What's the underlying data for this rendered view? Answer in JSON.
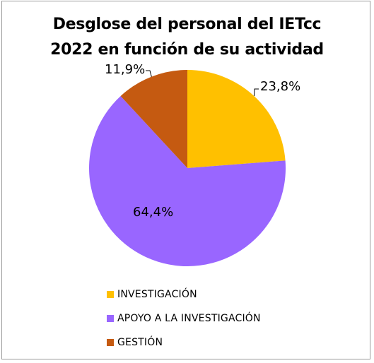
{
  "chart_data": {
    "type": "pie",
    "title_line1": "Desglose del personal del IETcc",
    "title_line2": "2022 en función de su actividad",
    "slices": [
      {
        "name": "INVESTIGACIÓN",
        "value": 23.8,
        "label": "23,8%",
        "color": "#FFC000"
      },
      {
        "name": "APOYO A LA INVESTIGACIÓN",
        "value": 64.4,
        "label": "64,4%",
        "color": "#9966FF"
      },
      {
        "name": "GESTIÓN",
        "value": 11.9,
        "label": "11,9%",
        "color": "#C55A11"
      }
    ],
    "legend_position": "bottom"
  }
}
